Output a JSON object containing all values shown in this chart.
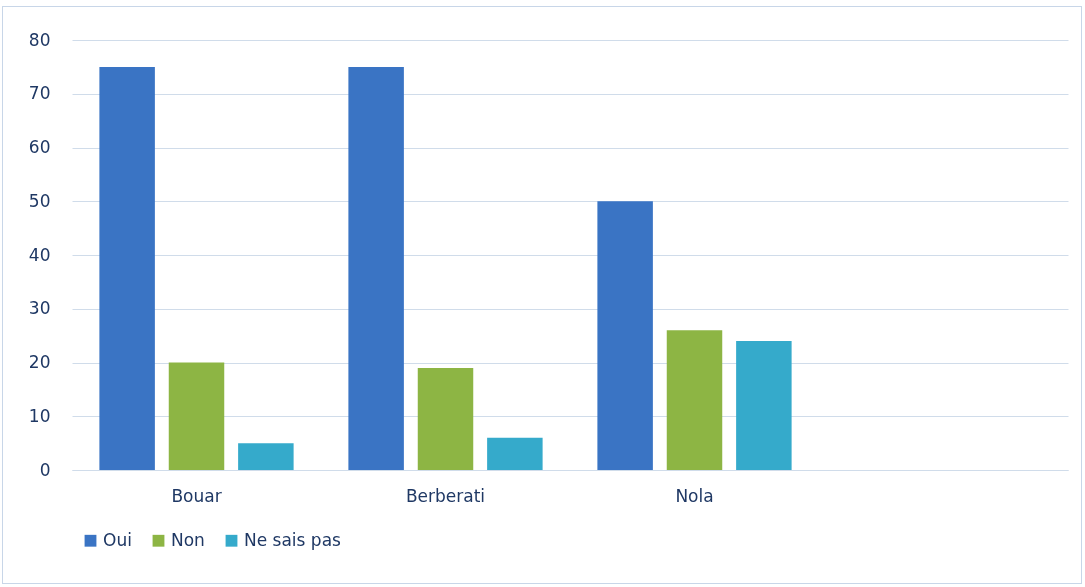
{
  "chart_data": {
    "type": "bar",
    "categories": [
      "Bouar",
      "Berberati",
      "Nola",
      null
    ],
    "series": [
      {
        "name": "Oui",
        "color": "#3a74c4",
        "values": [
          75,
          75,
          50,
          null
        ]
      },
      {
        "name": "Non",
        "color": "#8db544",
        "values": [
          20,
          19,
          26,
          null
        ]
      },
      {
        "name": "Ne sais pas",
        "color": "#35aacb",
        "values": [
          5,
          6,
          24,
          null
        ]
      }
    ],
    "ylim": [
      0,
      80
    ],
    "yticks": [
      0,
      10,
      20,
      30,
      40,
      50,
      60,
      70,
      80
    ],
    "grid": "y",
    "legend": "bottom"
  }
}
